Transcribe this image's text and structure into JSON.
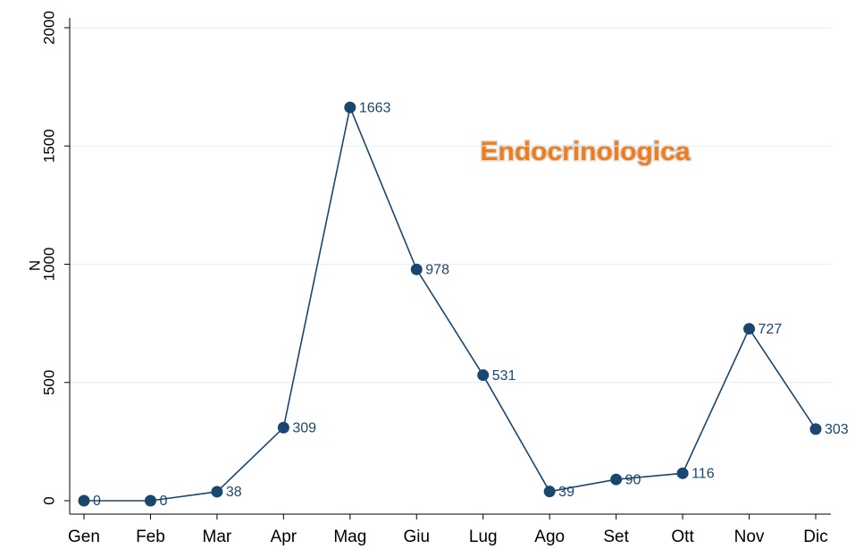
{
  "chart_data": {
    "type": "line",
    "title": "Endocrinologica",
    "y_label": "N",
    "categories": [
      "Gen",
      "Feb",
      "Mar",
      "Apr",
      "Mag",
      "Giu",
      "Lug",
      "Ago",
      "Set",
      "Ott",
      "Nov",
      "Dic"
    ],
    "series": [
      {
        "name": "N",
        "color": "#1a476f",
        "values": [
          0,
          0,
          38,
          309,
          1663,
          978,
          531,
          39,
          90,
          116,
          727,
          303
        ]
      }
    ],
    "ylim": [
      0,
      2000
    ],
    "yticks": [
      0,
      500,
      1000,
      1500,
      2000
    ],
    "grid": true
  }
}
